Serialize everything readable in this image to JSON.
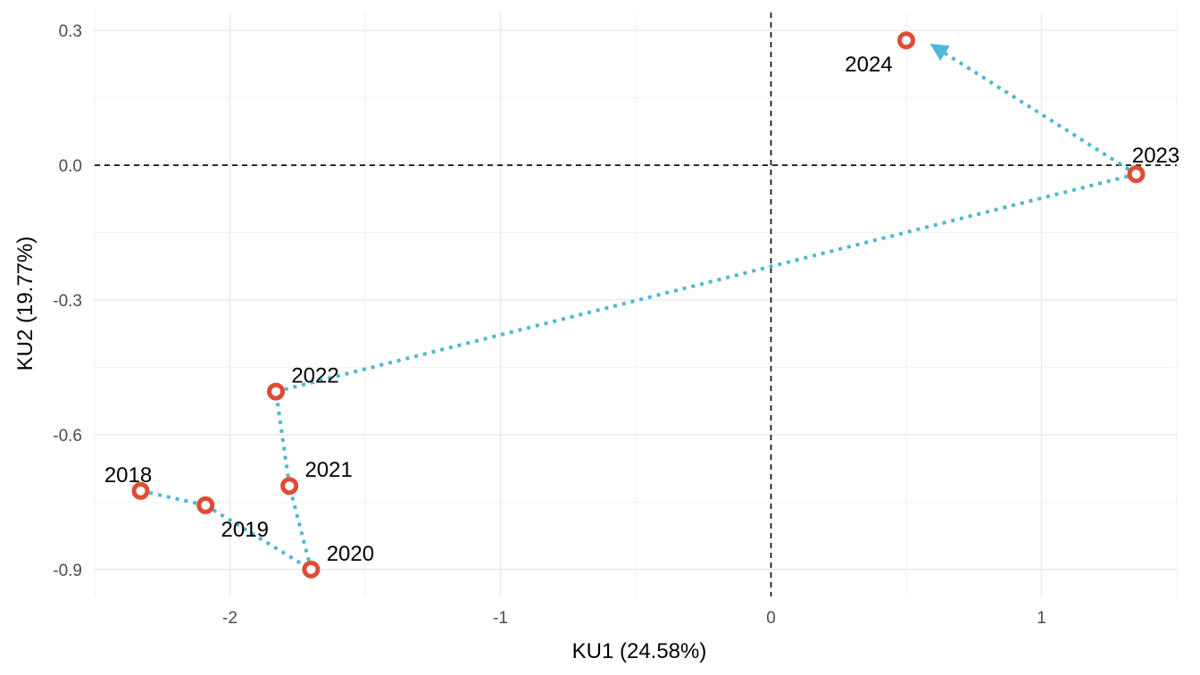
{
  "chart_data": {
    "type": "scatter",
    "title": "",
    "xlabel": "KU1 (24.58%)",
    "ylabel": "KU2 (19.77%)",
    "xlim": [
      -2.5,
      1.5
    ],
    "ylim": [
      -0.96,
      0.34
    ],
    "x_ticks": [
      {
        "value": -2,
        "label": "-2"
      },
      {
        "value": -1,
        "label": "-1"
      },
      {
        "value": 0,
        "label": "0"
      },
      {
        "value": 1,
        "label": "1"
      }
    ],
    "y_ticks": [
      {
        "value": 0.3,
        "label": "0.3"
      },
      {
        "value": 0.0,
        "label": "0.0"
      },
      {
        "value": -0.3,
        "label": "-0.3"
      },
      {
        "value": -0.6,
        "label": "-0.6"
      },
      {
        "value": -0.9,
        "label": "-0.9"
      }
    ],
    "grid": true,
    "reference_lines": {
      "x": 0,
      "y": 0,
      "style": "dashed"
    },
    "path": {
      "style": "dotted",
      "arrow": "end",
      "color": "#4fb8d4"
    },
    "points": [
      {
        "label": "2018",
        "x": -2.33,
        "y": -0.725
      },
      {
        "label": "2019",
        "x": -2.09,
        "y": -0.757
      },
      {
        "label": "2020",
        "x": -1.7,
        "y": -0.9
      },
      {
        "label": "2021",
        "x": -1.78,
        "y": -0.714
      },
      {
        "label": "2022",
        "x": -1.83,
        "y": -0.504
      },
      {
        "label": "2023",
        "x": 1.35,
        "y": -0.02
      },
      {
        "label": "2024",
        "x": 0.5,
        "y": 0.278
      }
    ],
    "marker_color": "#e04b35"
  }
}
